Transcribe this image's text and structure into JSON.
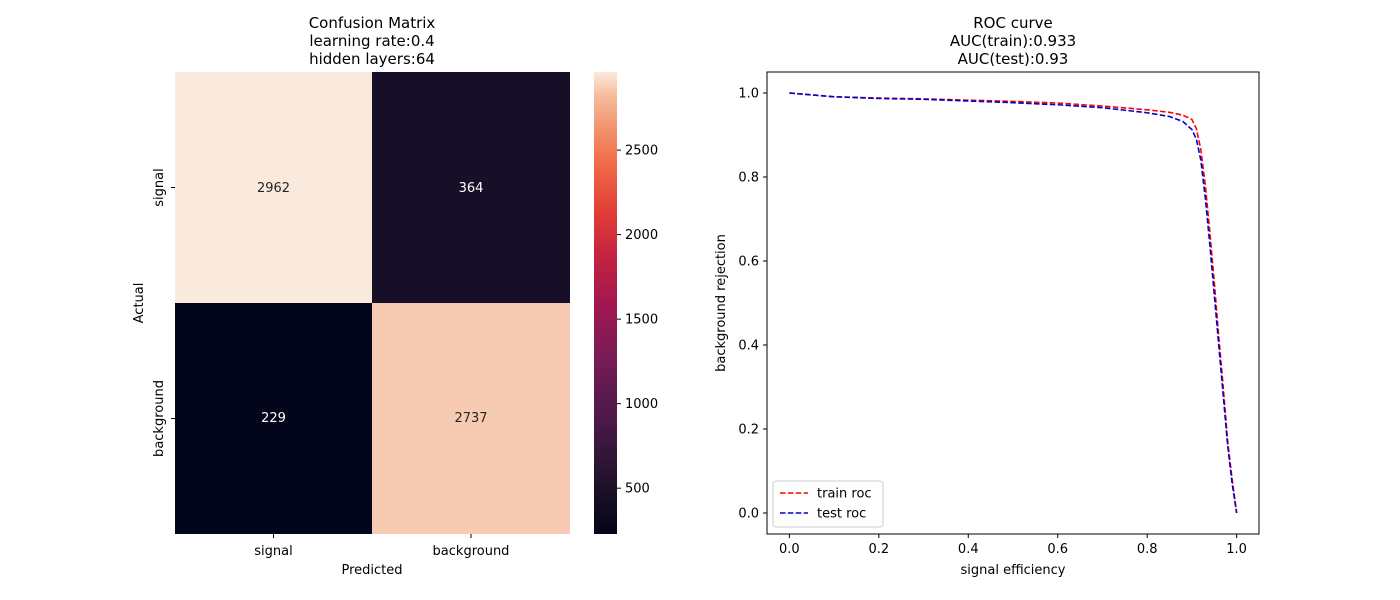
{
  "chart_data": [
    {
      "type": "heatmap",
      "title_lines": [
        "Confusion Matrix",
        "learning rate:0.4",
        "hidden layers:64"
      ],
      "xlabel": "Predicted",
      "ylabel": "Actual",
      "x_categories": [
        "signal",
        "background"
      ],
      "y_categories": [
        "signal",
        "background"
      ],
      "values": [
        [
          2962,
          364
        ],
        [
          229,
          2737
        ]
      ],
      "cell_labels": [
        [
          "2962",
          "364"
        ],
        [
          "229",
          "2737"
        ]
      ],
      "colorbar": {
        "colormap": "rocket",
        "range": [
          229,
          2962
        ],
        "ticks": [
          500,
          1000,
          1500,
          2000,
          2500
        ],
        "tick_labels": [
          "500",
          "1000",
          "1500",
          "2000",
          "2500"
        ]
      },
      "colors": {
        "2962": "#faeade",
        "364": "#170f27",
        "229": "#03051a",
        "2737": "#f6cbb1"
      }
    },
    {
      "type": "line",
      "title_lines": [
        "ROC curve",
        "AUC(train):0.933",
        "AUC(test):0.93"
      ],
      "xlabel": "signal efficiency",
      "ylabel": "background rejection",
      "xlim": [
        -0.05,
        1.05
      ],
      "ylim": [
        -0.05,
        1.05
      ],
      "xticks": [
        0.0,
        0.2,
        0.4,
        0.6,
        0.8,
        1.0
      ],
      "xtick_labels": [
        "0.0",
        "0.2",
        "0.4",
        "0.6",
        "0.8",
        "1.0"
      ],
      "yticks": [
        0.0,
        0.2,
        0.4,
        0.6,
        0.8,
        1.0
      ],
      "ytick_labels": [
        "0.0",
        "0.2",
        "0.4",
        "0.6",
        "0.8",
        "1.0"
      ],
      "legend_position": "lower-left",
      "series": [
        {
          "name": "train roc",
          "color": "#ff0000",
          "style": "dashed",
          "points": [
            [
              0.0,
              1.0
            ],
            [
              0.1,
              0.991
            ],
            [
              0.2,
              0.988
            ],
            [
              0.3,
              0.986
            ],
            [
              0.4,
              0.983
            ],
            [
              0.5,
              0.98
            ],
            [
              0.6,
              0.976
            ],
            [
              0.7,
              0.969
            ],
            [
              0.8,
              0.96
            ],
            [
              0.85,
              0.954
            ],
            [
              0.88,
              0.947
            ],
            [
              0.9,
              0.937
            ],
            [
              0.91,
              0.915
            ],
            [
              0.92,
              0.865
            ],
            [
              0.93,
              0.78
            ],
            [
              0.94,
              0.67
            ],
            [
              0.95,
              0.55
            ],
            [
              0.96,
              0.42
            ],
            [
              0.97,
              0.3
            ],
            [
              0.98,
              0.17
            ],
            [
              0.99,
              0.08
            ],
            [
              1.0,
              0.0
            ]
          ]
        },
        {
          "name": "test roc",
          "color": "#0000cc",
          "style": "dashed",
          "points": [
            [
              0.0,
              1.0
            ],
            [
              0.1,
              0.991
            ],
            [
              0.2,
              0.987
            ],
            [
              0.3,
              0.985
            ],
            [
              0.4,
              0.981
            ],
            [
              0.5,
              0.977
            ],
            [
              0.6,
              0.972
            ],
            [
              0.7,
              0.965
            ],
            [
              0.8,
              0.953
            ],
            [
              0.85,
              0.944
            ],
            [
              0.88,
              0.932
            ],
            [
              0.9,
              0.913
            ],
            [
              0.91,
              0.89
            ],
            [
              0.92,
              0.84
            ],
            [
              0.93,
              0.75
            ],
            [
              0.94,
              0.64
            ],
            [
              0.95,
              0.52
            ],
            [
              0.96,
              0.4
            ],
            [
              0.97,
              0.28
            ],
            [
              0.98,
              0.16
            ],
            [
              0.99,
              0.07
            ],
            [
              1.0,
              0.0
            ]
          ]
        }
      ]
    }
  ]
}
